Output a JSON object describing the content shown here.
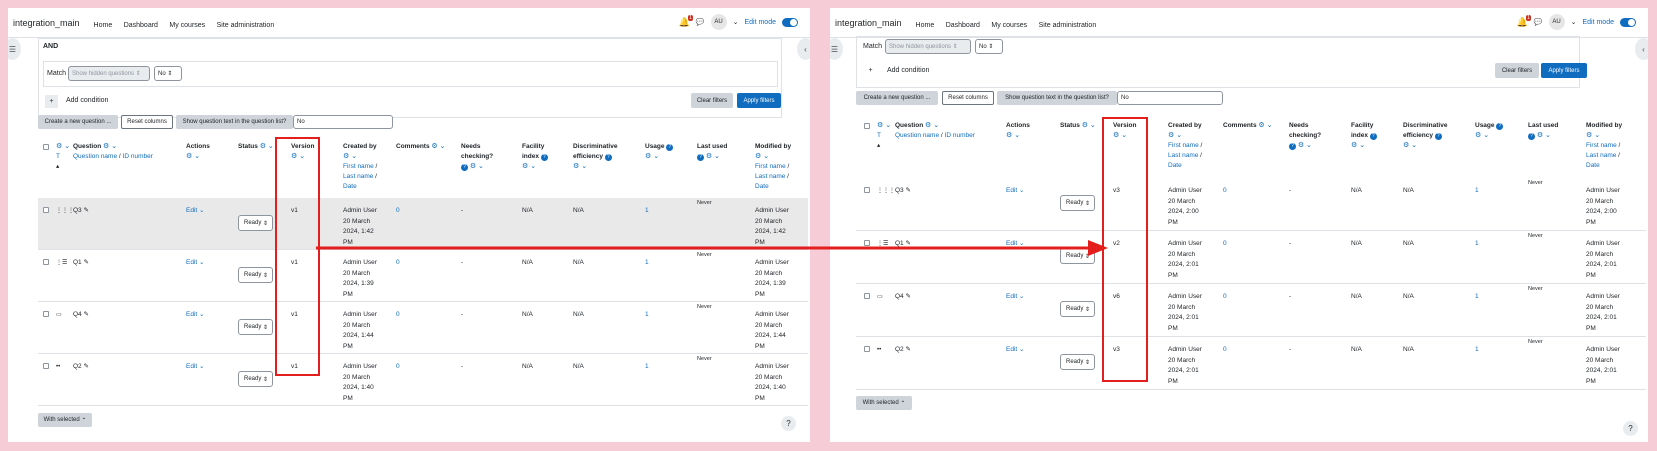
{
  "nav": {
    "brand": "integration_main",
    "links": [
      "Home",
      "Dashboard",
      "My courses",
      "Site administration"
    ],
    "avatar": "AU",
    "edit_mode": "Edit mode",
    "notification_count": "1"
  },
  "filters": {
    "and_label": "AND",
    "match_label": "Match",
    "hidden_placeholder": "Show hidden questions",
    "no_value": "No",
    "add_condition": "Add condition",
    "clear_filters": "Clear filters",
    "apply_filters": "Apply filters"
  },
  "toolbar": {
    "create_new": "Create a new question ...",
    "reset_columns": "Reset columns",
    "show_text_label": "Show question text in the question list?",
    "show_text_value": "No"
  },
  "headers": {
    "t": "T",
    "question": "Question",
    "question_name": "Question name",
    "slash": "/",
    "id_number": "ID number",
    "actions": "Actions",
    "status": "Status",
    "version": "Version",
    "created_by": "Created by",
    "first_name": "First name",
    "last_name": "Last name",
    "date": "Date",
    "comments": "Comments",
    "needs": "Needs",
    "checking": "checking?",
    "facility": "Facility",
    "index": "index",
    "discriminative": "Discriminative",
    "efficiency": "efficiency",
    "usage": "Usage",
    "last_used": "Last used",
    "modified_by": "Modified by"
  },
  "left_rows": [
    {
      "name": "Q3",
      "version": "v1",
      "creator": [
        "Admin User",
        "20 March",
        "2024, 1:42",
        "PM"
      ],
      "modifier": [
        "Admin User",
        "20 March",
        "2024, 1:42",
        "PM"
      ]
    },
    {
      "name": "Q1",
      "version": "v1",
      "creator": [
        "Admin User",
        "20 March",
        "2024, 1:39",
        "PM"
      ],
      "modifier": [
        "Admin User",
        "20 March",
        "2024, 1:39",
        "PM"
      ]
    },
    {
      "name": "Q4",
      "version": "v1",
      "creator": [
        "Admin User",
        "20 March",
        "2024, 1:44",
        "PM"
      ],
      "modifier": [
        "Admin User",
        "20 March",
        "2024, 1:44",
        "PM"
      ]
    },
    {
      "name": "Q2",
      "version": "v1",
      "creator": [
        "Admin User",
        "20 March",
        "2024, 1:40",
        "PM"
      ],
      "modifier": [
        "Admin User",
        "20 March",
        "2024, 1:40",
        "PM"
      ]
    }
  ],
  "right_rows": [
    {
      "name": "Q3",
      "version": "v3",
      "creator": [
        "Admin User",
        "20 March",
        "2024, 2:00",
        "PM"
      ],
      "modifier": [
        "Admin User",
        "20 March",
        "2024, 2:00",
        "PM"
      ]
    },
    {
      "name": "Q1",
      "version": "v2",
      "creator": [
        "Admin User",
        "20 March",
        "2024, 2:01",
        "PM"
      ],
      "modifier": [
        "Admin User",
        "20 March",
        "2024, 2:01",
        "PM"
      ]
    },
    {
      "name": "Q4",
      "version": "v6",
      "creator": [
        "Admin User",
        "20 March",
        "2024, 2:01",
        "PM"
      ],
      "modifier": [
        "Admin User",
        "20 March",
        "2024, 2:01",
        "PM"
      ]
    },
    {
      "name": "Q2",
      "version": "v3",
      "creator": [
        "Admin User",
        "20 March",
        "2024, 2:01",
        "PM"
      ],
      "modifier": [
        "Admin User",
        "20 March",
        "2024, 2:01",
        "PM"
      ]
    }
  ],
  "row_common": {
    "edit": "Edit",
    "status": "Ready",
    "comments": "0",
    "needs": "-",
    "facility": "N/A",
    "discriminative": "N/A",
    "usage": "1",
    "last_used": "Never"
  },
  "footer": {
    "with_selected": "With selected"
  },
  "colors": {
    "primary": "#0f6cbf",
    "highlight_red": "#e41d1d",
    "background": "#f6ccd6"
  }
}
